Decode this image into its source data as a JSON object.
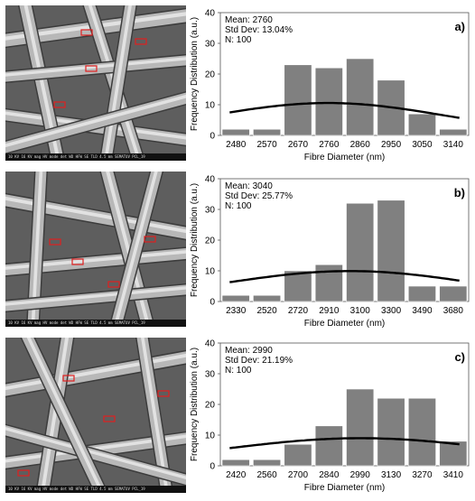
{
  "panels": [
    {
      "sem_caption": "10 KV 16 KV  mag  HV  mode  det  WD  HFW  SE  TLD  4.5 mm  SEMATUV PCL_19",
      "chart_data": {
        "type": "bar",
        "label": "a)",
        "stats": [
          "Mean: 2760",
          "Std Dev: 13.04%",
          "N: 100"
        ],
        "categories": [
          "2480",
          "2570",
          "2670",
          "2760",
          "2860",
          "2950",
          "3050",
          "3140"
        ],
        "values": [
          2,
          2,
          23,
          22,
          25,
          18,
          7,
          2
        ],
        "fit_curve": {
          "mean": 2760,
          "std_dev_percent": 13.04
        },
        "xlabel": "Fibre Diameter (nm)",
        "ylabel": "Frequency Distribution (a.u.)",
        "ylim": [
          0,
          40
        ],
        "yticks": [
          "0",
          "10",
          "20",
          "30",
          "40"
        ],
        "grid": false,
        "legend": "none"
      }
    },
    {
      "sem_caption": "10 KV 16 KV  mag  HV  mode  det  WD  HFW  SE  TLD  4.5 mm  SEMATUV PCL_19",
      "chart_data": {
        "type": "bar",
        "label": "b)",
        "stats": [
          "Mean: 3040",
          "Std Dev: 25.77%",
          "N: 100"
        ],
        "categories": [
          "2330",
          "2520",
          "2720",
          "2910",
          "3100",
          "3300",
          "3490",
          "3680"
        ],
        "values": [
          2,
          2,
          10,
          12,
          32,
          33,
          5,
          5
        ],
        "fit_curve": {
          "mean": 3040,
          "std_dev_percent": 25.77
        },
        "xlabel": "Fibre Diameter (nm)",
        "ylabel": "Frequency Distribution (a.u.)",
        "ylim": [
          0,
          40
        ],
        "yticks": [
          "0",
          "10",
          "20",
          "30",
          "40"
        ],
        "grid": false,
        "legend": "none"
      }
    },
    {
      "sem_caption": "10 KV 16 KV  mag  HV  mode  det  WD  HFW  SE  TLD  4.5 mm  SEMATUV PCL_19",
      "chart_data": {
        "type": "bar",
        "label": "c)",
        "stats": [
          "Mean: 2990",
          "Std Dev: 21.19%",
          "N: 100"
        ],
        "categories": [
          "2420",
          "2560",
          "2700",
          "2840",
          "2990",
          "3130",
          "3270",
          "3410"
        ],
        "values": [
          2,
          2,
          7,
          13,
          25,
          22,
          22,
          8
        ],
        "fit_curve": {
          "mean": 2990,
          "std_dev_percent": 21.19
        },
        "xlabel": "Fibre Diameter (nm)",
        "ylabel": "Frequency Distribution (a.u.)",
        "ylim": [
          0,
          40
        ],
        "yticks": [
          "0",
          "10",
          "20",
          "30",
          "40"
        ],
        "grid": false,
        "legend": "none"
      }
    }
  ],
  "colors": {
    "bar_fill": "#808080",
    "bar_stroke": "#ffffff",
    "curve": "#000000",
    "axis": "#555555"
  }
}
